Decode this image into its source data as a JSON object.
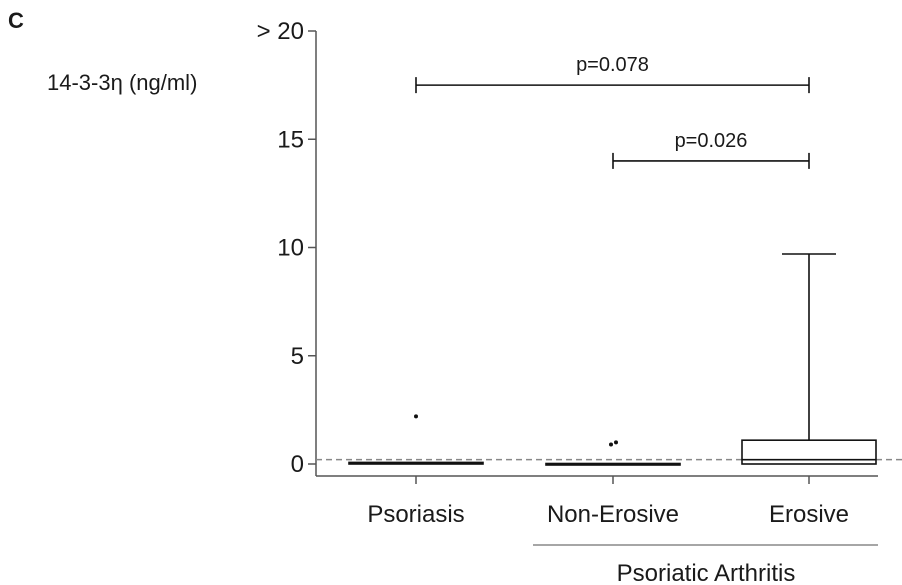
{
  "panel_label": "C",
  "chart_data": {
    "type": "box",
    "ylabel": "14-3-3η (ng/ml)",
    "ylim": [
      0,
      20
    ],
    "yticks": [
      {
        "value": 20,
        "label": "> 20"
      },
      {
        "value": 15,
        "label": "15"
      },
      {
        "value": 10,
        "label": "10"
      },
      {
        "value": 5,
        "label": "5"
      },
      {
        "value": 0,
        "label": "0"
      }
    ],
    "categories": [
      "Psoriasis",
      "Non-Erosive",
      "Erosive"
    ],
    "group_label": "Psoriatic Arthritis",
    "group_members": [
      "Non-Erosive",
      "Erosive"
    ],
    "reference_line": 0.2,
    "boxes": [
      {
        "category": "Psoriasis",
        "min": 0,
        "q1": 0,
        "median": 0,
        "q3": 0.05,
        "max": 0.05,
        "outliers": [
          2.2
        ]
      },
      {
        "category": "Non-Erosive",
        "min": 0,
        "q1": 0,
        "median": 0,
        "q3": 0,
        "max": 0,
        "outliers": [
          0.9,
          1.0
        ]
      },
      {
        "category": "Erosive",
        "min": 0,
        "q1": 0,
        "median": 0.2,
        "q3": 1.1,
        "max": 9.7,
        "outliers": []
      }
    ],
    "comparisons": [
      {
        "from": "Psoriasis",
        "to": "Erosive",
        "y": 17.5,
        "label": "p=0.078"
      },
      {
        "from": "Non-Erosive",
        "to": "Erosive",
        "y": 14.0,
        "label": "p=0.026"
      }
    ]
  }
}
